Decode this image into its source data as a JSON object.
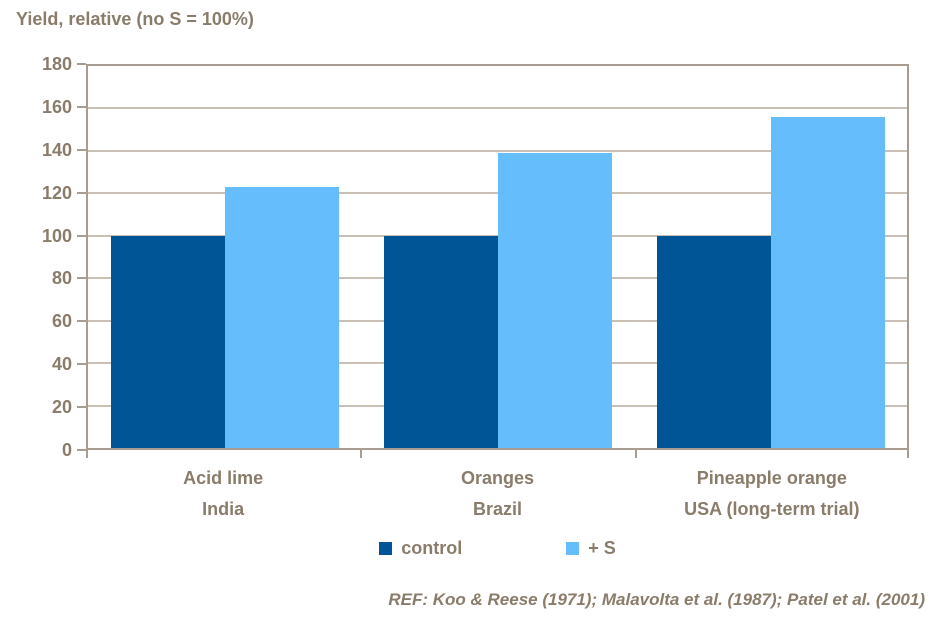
{
  "chart": {
    "title": "Yield, relative (no S = 100%)",
    "footer": "REF: Koo & Reese (1971); Malavolta et al. (1987); Patel et al. (2001)"
  },
  "colors": {
    "control_bar": "#005596",
    "plus_s_bar": "#66BDFC",
    "text": "#8A7C6A",
    "gridline": "#C9BFB4",
    "axis": "#A79C8F",
    "background": "#FFFFFF"
  },
  "chart_data": {
    "type": "bar",
    "categories": [
      "Acid lime",
      "Oranges",
      "Pineapple orange"
    ],
    "category_sublabels": [
      "India",
      "Brazil",
      "USA (long-term trial)"
    ],
    "series": [
      {
        "name": "control",
        "color": "#005596",
        "values": [
          100,
          100,
          100
        ]
      },
      {
        "name": "+ S",
        "color": "#66BDFC",
        "values": [
          123,
          139,
          156
        ]
      }
    ],
    "title": "Yield, relative (no S = 100%)",
    "xlabel": "",
    "ylabel": "Yield, relative (no S = 100%)",
    "ylim": [
      0,
      180
    ],
    "ytick_step": 20,
    "grid": true,
    "legend_position": "bottom",
    "annotation": "REF: Koo & Reese (1971); Malavolta et al. (1987); Patel et al. (2001)"
  }
}
